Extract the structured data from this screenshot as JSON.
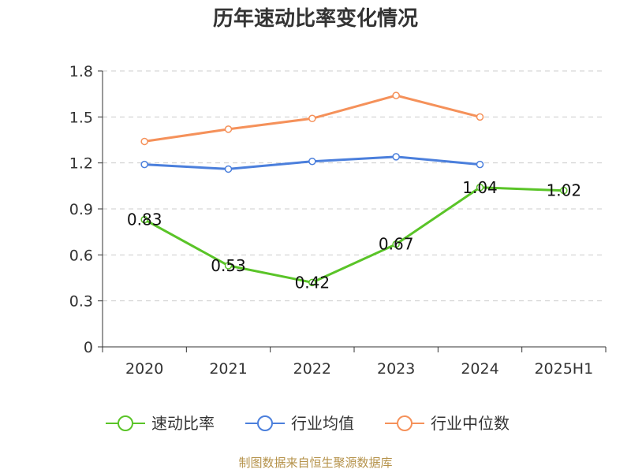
{
  "title": "历年速动比率变化情况",
  "source": "制图数据来自恒生聚源数据库",
  "colors": {
    "axis": "#333333",
    "grid": "#cccccc"
  },
  "chart_data": {
    "type": "line",
    "title": "历年速动比率变化情况",
    "xlabel": "",
    "ylabel": "",
    "categories": [
      "2020",
      "2021",
      "2022",
      "2023",
      "2024",
      "2025H1"
    ],
    "ylim": [
      0,
      1.8
    ],
    "yticks": [
      "0",
      "0.3",
      "0.6",
      "0.9",
      "1.2",
      "1.5",
      "1.8"
    ],
    "grid": true,
    "legend_position": "bottom",
    "series": [
      {
        "name": "速动比率",
        "color": "#5ac428",
        "values": [
          0.83,
          0.53,
          0.42,
          0.67,
          1.04,
          1.02
        ],
        "labels": [
          "0.83",
          "0.53",
          "0.42",
          "0.67",
          "1.04",
          "1.02"
        ]
      },
      {
        "name": "行业均值",
        "color": "#4b7fdc",
        "values": [
          1.19,
          1.16,
          1.21,
          1.24,
          1.19,
          null
        ],
        "labels": []
      },
      {
        "name": "行业中位数",
        "color": "#f5915a",
        "values": [
          1.34,
          1.42,
          1.49,
          1.64,
          1.5,
          null
        ],
        "labels": []
      }
    ]
  }
}
